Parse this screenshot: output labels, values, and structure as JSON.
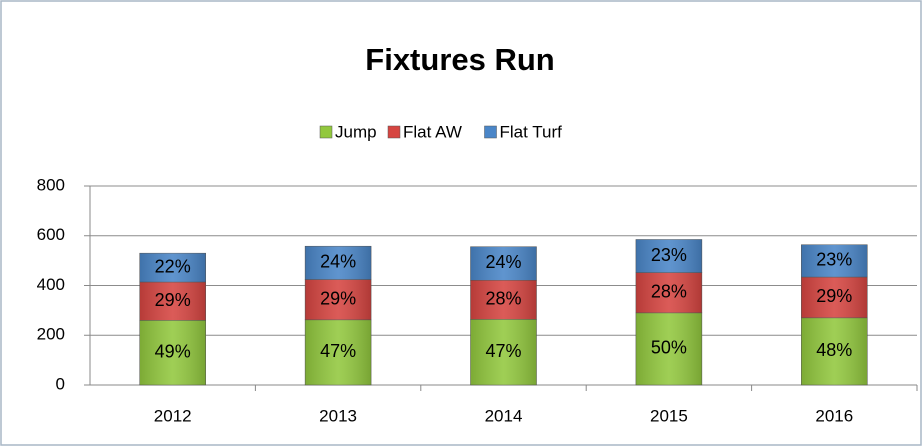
{
  "chart_data": {
    "type": "stacked_bar",
    "title": "Fixtures Run",
    "categories": [
      "2012",
      "2013",
      "2014",
      "2015",
      "2016"
    ],
    "series": [
      {
        "name": "Jump",
        "color": "#92c83e",
        "values": [
          260,
          262,
          264,
          290,
          270
        ],
        "value_labels": [
          "49%",
          "47%",
          "47%",
          "50%",
          "48%"
        ]
      },
      {
        "name": "Flat AW",
        "color": "#d64541",
        "values": [
          154,
          162,
          157,
          162,
          164
        ],
        "value_labels": [
          "29%",
          "29%",
          "28%",
          "28%",
          "29%"
        ]
      },
      {
        "name": "Flat Turf",
        "color": "#4a86c8",
        "values": [
          116,
          134,
          135,
          133,
          130
        ],
        "value_labels": [
          "22%",
          "24%",
          "24%",
          "23%",
          "23%"
        ]
      }
    ],
    "ylim": [
      0,
      800
    ],
    "yticks": [
      0,
      200,
      400,
      600,
      800
    ],
    "grid": true,
    "legend": "top"
  }
}
